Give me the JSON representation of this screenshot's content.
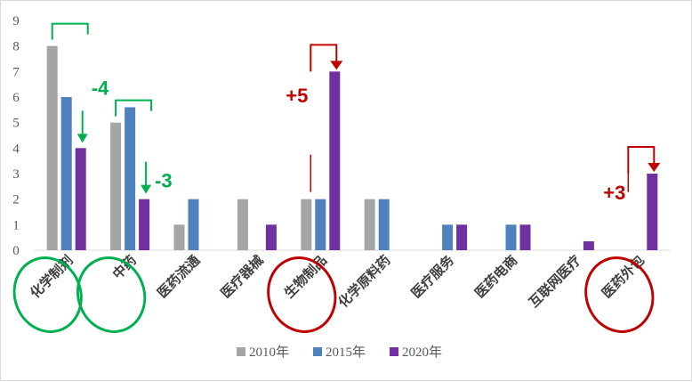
{
  "chart_data": {
    "type": "bar",
    "categories": [
      "化学制剂",
      "中药",
      "医药流通",
      "医疗器械",
      "生物制品",
      "化学原料药",
      "医疗服务",
      "医药电商",
      "互联网医疗",
      "医药外包"
    ],
    "series": [
      {
        "name": "2010年",
        "color": "#a5a5a5",
        "values": [
          8,
          5,
          1,
          2,
          2,
          2,
          0,
          0,
          0,
          0
        ]
      },
      {
        "name": "2015年",
        "color": "#4f81bd",
        "values": [
          6,
          5.6,
          2,
          0,
          2,
          2,
          1,
          1,
          0,
          0
        ]
      },
      {
        "name": "2020年",
        "color": "#7030a0",
        "values": [
          4,
          2,
          0,
          1,
          7,
          0,
          1,
          1,
          0.35,
          3
        ]
      }
    ],
    "ylim": [
      0,
      9
    ],
    "yticks": [
      "0",
      "1",
      "2",
      "3",
      "4",
      "5",
      "6",
      "7",
      "8",
      "9"
    ],
    "grid": false,
    "legend": "bottom",
    "annotations": [
      {
        "text": "-4",
        "category": "化学制剂",
        "direction": "down",
        "color": "#00b050"
      },
      {
        "text": "-3",
        "category": "中药",
        "direction": "down",
        "color": "#00b050"
      },
      {
        "text": "+5",
        "category": "生物制品",
        "direction": "up",
        "color": "#c00000"
      },
      {
        "text": "+3",
        "category": "医药外包",
        "direction": "up",
        "color": "#c00000"
      }
    ],
    "highlighted_categories": [
      {
        "category": "化学制剂",
        "color": "#00b050"
      },
      {
        "category": "中药",
        "color": "#00b050"
      },
      {
        "category": "生物制品",
        "color": "#c00000"
      },
      {
        "category": "医药外包",
        "color": "#c00000"
      }
    ]
  }
}
